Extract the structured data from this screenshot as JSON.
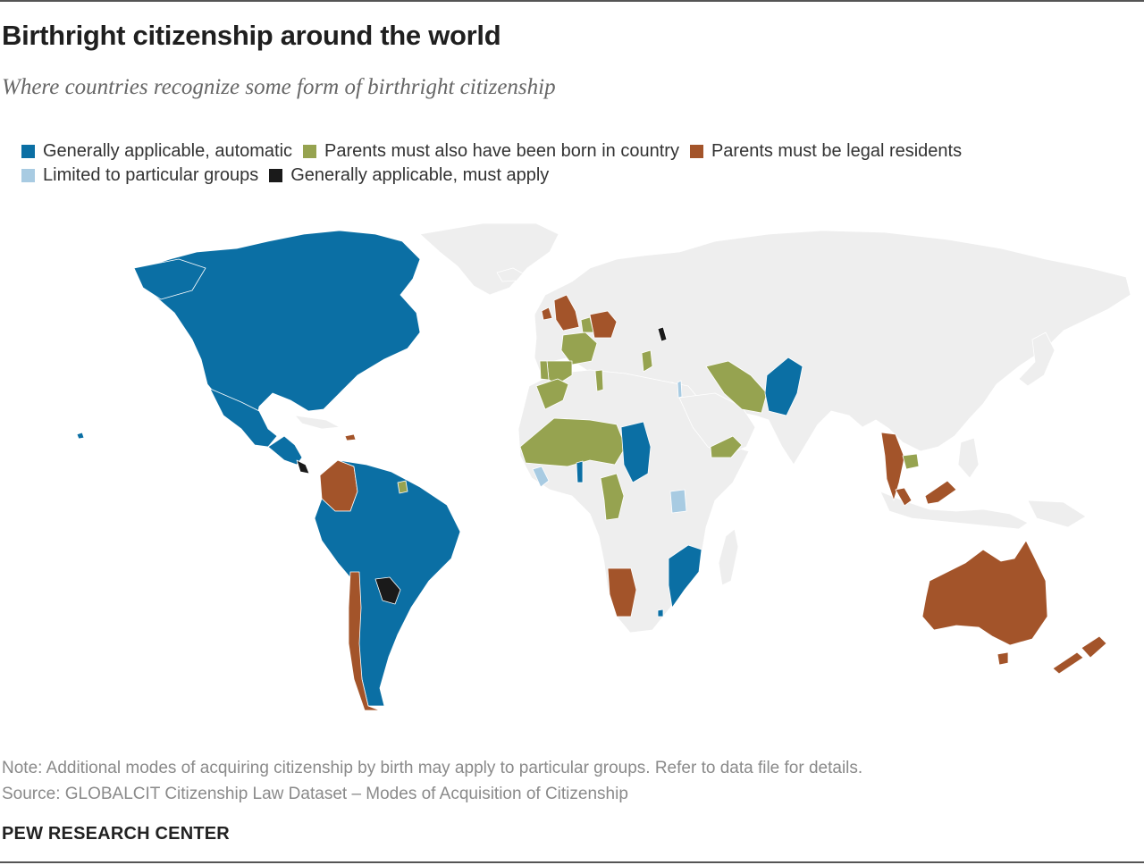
{
  "header": {
    "title": "Birthright citizenship around the world",
    "subtitle": "Where countries recognize some form of birthright citizenship"
  },
  "colors": {
    "automatic": "#0b6fa4",
    "born_in_country": "#96a350",
    "legal_residents": "#a3542a",
    "particular_groups": "#a8cbe2",
    "must_apply": "#1a1a1a",
    "no_birthright": "#eeeeee",
    "border": "#cccccc"
  },
  "legend": {
    "items": [
      {
        "key": "automatic",
        "label": "Generally applicable, automatic",
        "color": "#0b6fa4"
      },
      {
        "key": "born_in_country",
        "label": "Parents must also have been born in country",
        "color": "#96a350"
      },
      {
        "key": "legal_residents",
        "label": "Parents must be legal residents",
        "color": "#a3542a"
      },
      {
        "key": "particular_groups",
        "label": "Limited to particular groups",
        "color": "#a8cbe2"
      },
      {
        "key": "must_apply",
        "label": "Generally applicable, must apply",
        "color": "#1a1a1a"
      }
    ]
  },
  "map": {
    "projection": "world",
    "regions": [
      {
        "name": "north-america",
        "category": "automatic"
      },
      {
        "name": "mexico",
        "category": "automatic"
      },
      {
        "name": "central-america",
        "category": "automatic"
      },
      {
        "name": "costa-rica",
        "category": "must_apply"
      },
      {
        "name": "colombia",
        "category": "legal_residents"
      },
      {
        "name": "dominican-republic",
        "category": "legal_residents"
      },
      {
        "name": "suriname",
        "category": "born_in_country"
      },
      {
        "name": "south-america",
        "category": "automatic"
      },
      {
        "name": "paraguay",
        "category": "must_apply"
      },
      {
        "name": "chile",
        "category": "legal_residents"
      },
      {
        "name": "united-kingdom",
        "category": "legal_residents"
      },
      {
        "name": "ireland",
        "category": "legal_residents"
      },
      {
        "name": "germany",
        "category": "legal_residents"
      },
      {
        "name": "france",
        "category": "born_in_country"
      },
      {
        "name": "spain",
        "category": "born_in_country"
      },
      {
        "name": "portugal",
        "category": "born_in_country"
      },
      {
        "name": "belgium",
        "category": "born_in_country"
      },
      {
        "name": "netherlands",
        "category": "born_in_country"
      },
      {
        "name": "luxembourg",
        "category": "born_in_country"
      },
      {
        "name": "greece",
        "category": "born_in_country"
      },
      {
        "name": "moldova",
        "category": "must_apply"
      },
      {
        "name": "morocco",
        "category": "born_in_country"
      },
      {
        "name": "tunisia",
        "category": "born_in_country"
      },
      {
        "name": "west-africa",
        "category": "born_in_country"
      },
      {
        "name": "sierra-leone-liberia",
        "category": "particular_groups"
      },
      {
        "name": "benin-togo",
        "category": "automatic"
      },
      {
        "name": "chad",
        "category": "automatic"
      },
      {
        "name": "congo-gabon",
        "category": "born_in_country"
      },
      {
        "name": "uganda-kenya",
        "category": "particular_groups"
      },
      {
        "name": "egypt-sinai",
        "category": "particular_groups"
      },
      {
        "name": "tanzania-mozambique",
        "category": "automatic"
      },
      {
        "name": "lesotho",
        "category": "automatic"
      },
      {
        "name": "namibia",
        "category": "legal_residents"
      },
      {
        "name": "iran",
        "category": "born_in_country"
      },
      {
        "name": "yemen",
        "category": "born_in_country"
      },
      {
        "name": "pakistan",
        "category": "automatic"
      },
      {
        "name": "thailand",
        "category": "legal_residents"
      },
      {
        "name": "cambodia",
        "category": "born_in_country"
      },
      {
        "name": "malaysia",
        "category": "legal_residents"
      },
      {
        "name": "australia",
        "category": "legal_residents"
      },
      {
        "name": "tasmania",
        "category": "legal_residents"
      },
      {
        "name": "new-zealand",
        "category": "legal_residents"
      }
    ]
  },
  "footer": {
    "note": "Note: Additional modes of acquiring citizenship by birth may apply to particular groups. Refer to data file for details.",
    "source": "Source: GLOBALCIT Citizenship Law Dataset – Modes of Acquisition of Citizenship",
    "brand": "PEW RESEARCH CENTER"
  }
}
